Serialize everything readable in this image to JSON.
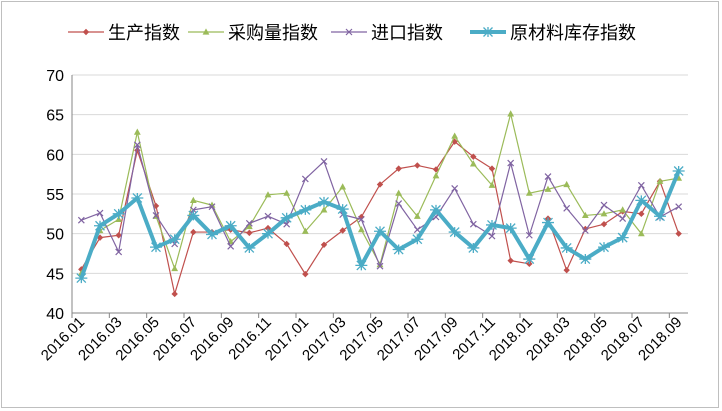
{
  "chart_data": {
    "type": "line",
    "title": "",
    "xlabel": "",
    "ylabel": "",
    "ylim": [
      40,
      70
    ],
    "yticks": [
      40,
      45,
      50,
      55,
      60,
      65,
      70
    ],
    "grid": "horizontal",
    "legend_position": "top",
    "x": [
      "2016.01",
      "2016.02",
      "2016.03",
      "2016.04",
      "2016.05",
      "2016.06",
      "2016.07",
      "2016.08",
      "2016.09",
      "2016.10",
      "2016.11",
      "2016.12",
      "2017.01",
      "2017.02",
      "2017.03",
      "2017.04",
      "2017.05",
      "2017.06",
      "2017.07",
      "2017.08",
      "2017.09",
      "2017.10",
      "2017.11",
      "2017.12",
      "2018.01",
      "2018.02",
      "2018.03",
      "2018.04",
      "2018.05",
      "2018.06",
      "2018.07",
      "2018.08",
      "2018.09"
    ],
    "xtick_labels": [
      "2016.01",
      "2016.03",
      "2016.05",
      "2016.07",
      "2016.09",
      "2016.11",
      "2017.01",
      "2017.03",
      "2017.05",
      "2017.07",
      "2017.09",
      "2017.11",
      "2018.01",
      "2018.03",
      "2018.05",
      "2018.07",
      "2018.09"
    ],
    "series": [
      {
        "name": "生产指数",
        "color": "#c0504d",
        "marker": "diamond",
        "values": [
          45.5,
          49.5,
          49.8,
          60.5,
          53.5,
          42.4,
          50.2,
          50.2,
          50.5,
          50.1,
          50.7,
          48.7,
          44.9,
          48.6,
          50.4,
          52.1,
          56.2,
          58.2,
          58.6,
          58.1,
          61.6,
          59.7,
          58.2,
          46.6,
          46.2,
          51.9,
          45.4,
          50.6,
          51.2,
          52.8,
          52.5,
          56.6,
          50.0
        ]
      },
      {
        "name": "采购量指数",
        "color": "#9bbb59",
        "marker": "triangle",
        "values": [
          45.0,
          50.4,
          51.8,
          62.8,
          52.2,
          45.6,
          54.2,
          53.6,
          49.0,
          50.9,
          54.9,
          55.1,
          50.3,
          53.0,
          55.9,
          50.5,
          46.1,
          55.1,
          52.2,
          57.3,
          62.3,
          58.8,
          56.1,
          65.1,
          55.1,
          55.6,
          56.2,
          52.3,
          52.5,
          53.0,
          50.0,
          56.6,
          57.0
        ]
      },
      {
        "name": "进口指数",
        "color": "#8064a2",
        "marker": "x",
        "values": [
          51.7,
          52.6,
          47.7,
          61.2,
          52.3,
          48.7,
          53.0,
          53.4,
          48.4,
          51.3,
          52.2,
          51.2,
          56.9,
          59.1,
          52.4,
          51.8,
          45.9,
          53.8,
          50.5,
          52.1,
          55.7,
          51.2,
          49.7,
          58.9,
          49.8,
          57.2,
          53.2,
          50.4,
          53.6,
          51.9,
          56.1,
          52.1,
          53.4
        ]
      },
      {
        "name": "原材料库存指数",
        "color": "#4bacc6",
        "marker": "star",
        "values": [
          44.4,
          51.0,
          52.5,
          54.5,
          48.3,
          49.3,
          52.3,
          49.9,
          51.0,
          48.2,
          50.0,
          52.0,
          53.0,
          54.0,
          53.1,
          46.0,
          50.3,
          48.0,
          49.3,
          53.0,
          50.2,
          48.2,
          51.1,
          50.7,
          46.8,
          51.4,
          48.2,
          46.8,
          48.3,
          49.5,
          54.2,
          52.2,
          57.9
        ]
      }
    ]
  },
  "colors": {
    "axis": "#868686",
    "grid": "#d9d9d9",
    "text": "#000000"
  }
}
